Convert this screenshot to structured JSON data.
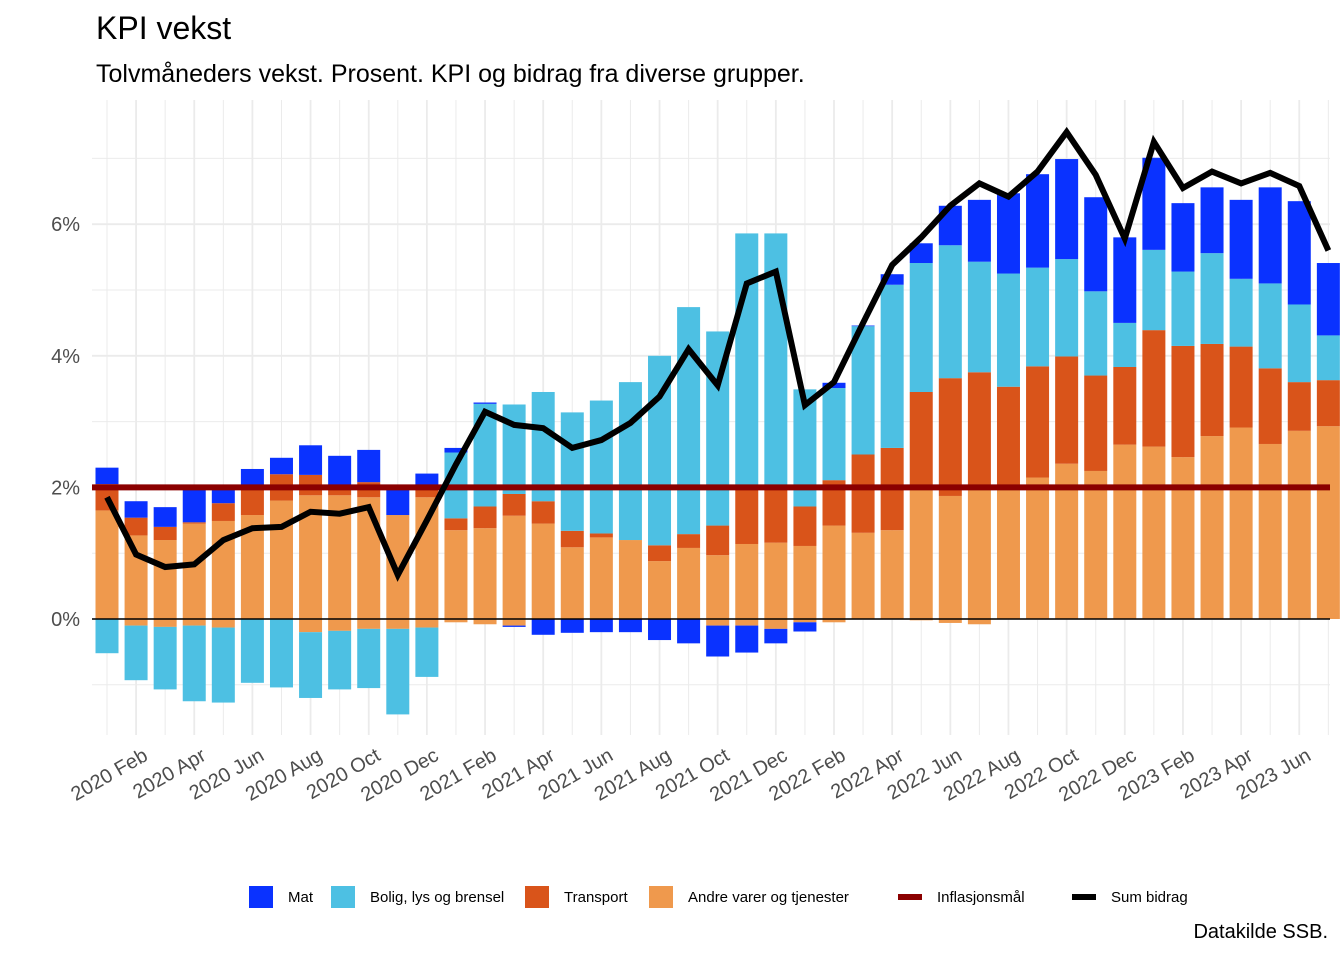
{
  "title": "KPI vekst",
  "subtitle": "Tolvmåneders vekst. Prosent. KPI og bidrag fra diverse grupper.",
  "source": "Datakilde SSB.",
  "colors": {
    "Mat": "#0a32ff",
    "Bolig": "#4dc0e3",
    "Transport": "#d9541a",
    "Andre": "#ef994d",
    "Inflasjonsmal": "#8b0000",
    "Sum": "#000000",
    "grid": "#ebebeb",
    "tick_text": "#4d4d4d"
  },
  "legend": [
    {
      "key": "Mat",
      "label": "Mat",
      "kind": "box"
    },
    {
      "key": "Bolig",
      "label": "Bolig, lys og brensel",
      "kind": "box"
    },
    {
      "key": "Transport",
      "label": "Transport",
      "kind": "box"
    },
    {
      "key": "Andre",
      "label": "Andre varer og tjenester",
      "kind": "box"
    },
    {
      "key": "Inflasjonsmal",
      "label": "Inflasjonsmål",
      "kind": "line"
    },
    {
      "key": "Sum",
      "label": "Sum bidrag",
      "kind": "line"
    }
  ],
  "chart_data": {
    "type": "bar",
    "stacked": true,
    "title": "KPI vekst",
    "subtitle": "Tolvmåneders vekst. Prosent. KPI og bidrag fra diverse grupper.",
    "xlabel": "",
    "ylabel": "",
    "y_unit": "%",
    "ylim": [
      -1.75,
      7.55
    ],
    "y_ticks": [
      0,
      2,
      4,
      6
    ],
    "y_tick_labels": [
      "0%",
      "2%",
      "4%",
      "6%"
    ],
    "grid": true,
    "legend_position": "bottom",
    "x": [
      "2020-01",
      "2020-02",
      "2020-03",
      "2020-04",
      "2020-05",
      "2020-06",
      "2020-07",
      "2020-08",
      "2020-09",
      "2020-10",
      "2020-11",
      "2020-12",
      "2021-01",
      "2021-02",
      "2021-03",
      "2021-04",
      "2021-05",
      "2021-06",
      "2021-07",
      "2021-08",
      "2021-09",
      "2021-10",
      "2021-11",
      "2021-12",
      "2022-01",
      "2022-02",
      "2022-03",
      "2022-04",
      "2022-05",
      "2022-06",
      "2022-07",
      "2022-08",
      "2022-09",
      "2022-10",
      "2022-11",
      "2022-12",
      "2023-01",
      "2023-02",
      "2023-03",
      "2023-04",
      "2023-05",
      "2023-06",
      "2023-07"
    ],
    "x_tick_labels": [
      "2020 Feb",
      "2020 Apr",
      "2020 Jun",
      "2020 Aug",
      "2020 Oct",
      "2020 Dec",
      "2021 Feb",
      "2021 Apr",
      "2021 Jun",
      "2021 Aug",
      "2021 Oct",
      "2021 Dec",
      "2022 Feb",
      "2022 Apr",
      "2022 Jun",
      "2022 Aug",
      "2022 Oct",
      "2022 Dec",
      "2023 Feb",
      "2023 Apr",
      "2023 Jun"
    ],
    "series": [
      {
        "name": "Andre varer og tjenester",
        "key": "Andre",
        "values": [
          1.65,
          1.27,
          1.2,
          1.45,
          1.49,
          1.58,
          1.8,
          1.88,
          1.88,
          1.85,
          1.58,
          1.85,
          1.35,
          1.38,
          1.57,
          1.45,
          1.09,
          1.24,
          1.2,
          0.88,
          1.08,
          0.97,
          1.14,
          1.16,
          1.11,
          1.42,
          1.31,
          1.35,
          1.97,
          1.87,
          2.0,
          1.97,
          2.15,
          2.36,
          2.25,
          2.65,
          2.62,
          2.46,
          2.78,
          2.91,
          2.66,
          2.86,
          2.93
        ]
      },
      {
        "name": "Transport",
        "key": "Transport",
        "values": [
          0.4,
          0.27,
          0.2,
          0.02,
          0.27,
          0.4,
          0.4,
          0.31,
          0.15,
          0.23,
          0.0,
          0.14,
          0.18,
          0.33,
          0.33,
          0.34,
          0.25,
          0.06,
          0.0,
          0.24,
          0.21,
          0.45,
          0.84,
          0.84,
          0.6,
          0.69,
          1.19,
          1.25,
          1.48,
          1.79,
          1.75,
          1.56,
          1.69,
          1.63,
          1.45,
          1.18,
          1.77,
          1.69,
          1.4,
          1.23,
          1.15,
          0.74,
          0.7
        ]
      },
      {
        "name": "Bolig, lys og brensel",
        "key": "Bolig",
        "values": [
          -0.52,
          -0.83,
          -0.95,
          -1.15,
          -1.14,
          -0.97,
          -1.04,
          -1.0,
          -0.89,
          -0.9,
          -1.3,
          -0.75,
          1.0,
          1.56,
          1.36,
          1.66,
          1.8,
          2.02,
          2.4,
          2.88,
          3.45,
          2.95,
          3.88,
          3.86,
          1.78,
          1.4,
          1.95,
          2.48,
          1.96,
          2.02,
          1.68,
          1.72,
          1.5,
          1.48,
          1.28,
          0.67,
          1.22,
          1.13,
          1.38,
          1.03,
          1.29,
          1.18,
          0.68
        ]
      },
      {
        "name": "Mat",
        "key": "Mat",
        "values": [
          0.25,
          0.25,
          0.3,
          0.5,
          0.2,
          0.3,
          0.25,
          0.45,
          0.45,
          0.49,
          0.4,
          0.22,
          0.07,
          0.02,
          -0.02,
          -0.24,
          -0.21,
          -0.2,
          -0.2,
          -0.32,
          -0.37,
          -0.47,
          -0.41,
          -0.22,
          -0.14,
          0.08,
          0.01,
          0.16,
          0.3,
          0.6,
          0.94,
          1.22,
          1.42,
          1.52,
          1.43,
          1.3,
          1.4,
          1.04,
          1.0,
          1.2,
          1.46,
          1.57,
          1.1
        ]
      },
      {
        "name": "Andre varer og tjenester (neg)",
        "key": "Andre",
        "negative_only": true,
        "values": [
          0,
          -0.1,
          -0.12,
          -0.1,
          -0.13,
          0,
          0,
          -0.2,
          -0.18,
          -0.15,
          -0.15,
          -0.13,
          -0.05,
          -0.08,
          -0.1,
          0,
          0,
          0,
          0,
          0,
          0,
          -0.1,
          -0.1,
          -0.15,
          -0.05,
          -0.05,
          0,
          0,
          -0.02,
          -0.06,
          -0.08,
          0,
          0,
          0,
          0,
          0,
          0,
          0,
          0,
          0,
          0,
          0,
          0
        ]
      },
      {
        "name": "Inflasjonsmål",
        "key": "Inflasjonsmal",
        "kind": "hline",
        "value": 2.0
      },
      {
        "name": "Sum bidrag",
        "key": "Sum",
        "kind": "line",
        "values": [
          1.85,
          0.98,
          0.79,
          0.83,
          1.2,
          1.38,
          1.4,
          1.63,
          1.6,
          1.7,
          0.67,
          1.5,
          2.35,
          3.15,
          2.95,
          2.9,
          2.6,
          2.72,
          2.98,
          3.38,
          4.1,
          3.55,
          5.1,
          5.28,
          3.25,
          3.6,
          4.5,
          5.38,
          5.8,
          6.28,
          6.62,
          6.42,
          6.8,
          7.4,
          6.75,
          5.78,
          7.25,
          6.55,
          6.8,
          6.62,
          6.78,
          6.58,
          5.6
        ]
      }
    ]
  }
}
